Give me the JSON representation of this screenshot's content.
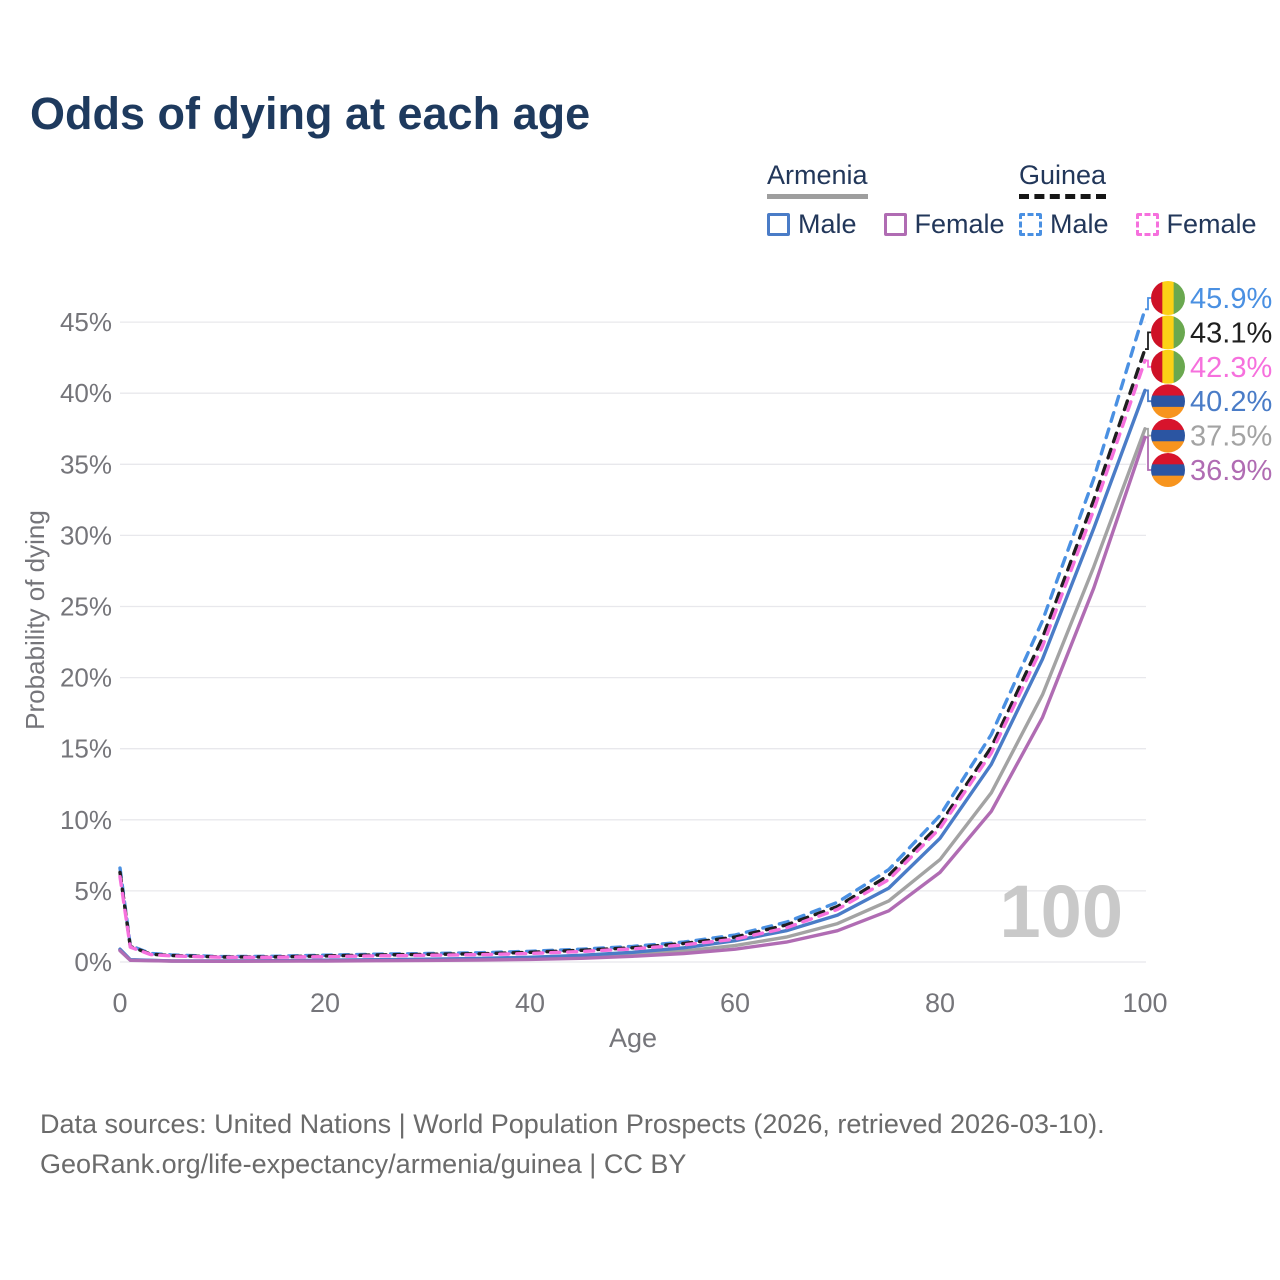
{
  "title": "Odds of dying at each age",
  "legend": {
    "groups": [
      {
        "name": "Armenia",
        "line_style": "solid",
        "underline_color": "#9e9e9e",
        "items": [
          {
            "label": "Male",
            "color": "#4a7cc7"
          },
          {
            "label": "Female",
            "color": "#b06cb3"
          }
        ]
      },
      {
        "name": "Guinea",
        "line_style": "dashed",
        "underline_color": "#161616",
        "items": [
          {
            "label": "Male",
            "color": "#4a90e2"
          },
          {
            "label": "Female",
            "color": "#f670dd"
          }
        ]
      }
    ]
  },
  "watermark_age": "100",
  "footer": {
    "line1": "Data sources: United Nations | World Population Prospects (2026, retrieved 2026-03-10).",
    "line2": "GeoRank.org/life-expectancy/armenia/guinea | CC BY"
  },
  "chart_data": {
    "type": "line",
    "title": "Odds of dying at each age",
    "xlabel": "Age",
    "ylabel": "Probability of dying",
    "xlim": [
      0,
      100
    ],
    "ylim": [
      0,
      47
    ],
    "x_ticks": [
      0,
      20,
      40,
      60,
      80,
      100
    ],
    "y_ticks": [
      0,
      5,
      10,
      15,
      20,
      25,
      30,
      35,
      40,
      45
    ],
    "y_tick_suffix": "%",
    "grid": "horizontal",
    "legend_position": "top-right",
    "axis_text_color": "#75757a",
    "grid_color": "#e8e8ec",
    "series": [
      {
        "name": "Armenia (both sexes)",
        "country": "Armenia",
        "sex": "both",
        "flag": "armenia",
        "color": "#a3a3a3",
        "dashed": false,
        "end_label": "37.5%",
        "points": [
          [
            0,
            0.85
          ],
          [
            1,
            0.14
          ],
          [
            5,
            0.07
          ],
          [
            10,
            0.06
          ],
          [
            15,
            0.07
          ],
          [
            20,
            0.1
          ],
          [
            25,
            0.12
          ],
          [
            30,
            0.15
          ],
          [
            35,
            0.19
          ],
          [
            40,
            0.25
          ],
          [
            45,
            0.36
          ],
          [
            50,
            0.53
          ],
          [
            55,
            0.78
          ],
          [
            60,
            1.15
          ],
          [
            65,
            1.75
          ],
          [
            70,
            2.7
          ],
          [
            75,
            4.3
          ],
          [
            80,
            7.2
          ],
          [
            85,
            11.9
          ],
          [
            90,
            18.8
          ],
          [
            95,
            27.8
          ],
          [
            100,
            37.5
          ]
        ]
      },
      {
        "name": "Armenia Male",
        "country": "Armenia",
        "sex": "male",
        "flag": "armenia",
        "color": "#4a7cc7",
        "dashed": false,
        "end_label": "40.2%",
        "points": [
          [
            0,
            0.9
          ],
          [
            1,
            0.16
          ],
          [
            5,
            0.08
          ],
          [
            10,
            0.07
          ],
          [
            15,
            0.09
          ],
          [
            20,
            0.13
          ],
          [
            25,
            0.16
          ],
          [
            30,
            0.2
          ],
          [
            35,
            0.25
          ],
          [
            40,
            0.33
          ],
          [
            45,
            0.47
          ],
          [
            50,
            0.68
          ],
          [
            55,
            1.0
          ],
          [
            60,
            1.5
          ],
          [
            65,
            2.2
          ],
          [
            70,
            3.3
          ],
          [
            75,
            5.2
          ],
          [
            80,
            8.7
          ],
          [
            85,
            13.9
          ],
          [
            90,
            21.3
          ],
          [
            95,
            30.5
          ],
          [
            100,
            40.2
          ]
        ]
      },
      {
        "name": "Guinea Male",
        "country": "Guinea",
        "sex": "male",
        "flag": "guinea",
        "color": "#4a90e2",
        "dashed": true,
        "end_label": "45.9%",
        "points": [
          [
            0,
            6.6
          ],
          [
            1,
            1.15
          ],
          [
            3,
            0.6
          ],
          [
            5,
            0.5
          ],
          [
            10,
            0.38
          ],
          [
            15,
            0.4
          ],
          [
            20,
            0.48
          ],
          [
            25,
            0.55
          ],
          [
            30,
            0.6
          ],
          [
            35,
            0.65
          ],
          [
            40,
            0.75
          ],
          [
            45,
            0.9
          ],
          [
            50,
            1.1
          ],
          [
            55,
            1.4
          ],
          [
            60,
            1.9
          ],
          [
            65,
            2.8
          ],
          [
            70,
            4.2
          ],
          [
            75,
            6.5
          ],
          [
            80,
            10.3
          ],
          [
            85,
            16.0
          ],
          [
            90,
            24.0
          ],
          [
            95,
            34.0
          ],
          [
            100,
            45.9
          ]
        ]
      },
      {
        "name": "Guinea (both sexes)",
        "country": "Guinea",
        "sex": "both",
        "flag": "guinea",
        "color": "#1f1f1f",
        "dashed": true,
        "end_label": "43.1%",
        "points": [
          [
            0,
            6.3
          ],
          [
            1,
            1.1
          ],
          [
            3,
            0.55
          ],
          [
            5,
            0.46
          ],
          [
            10,
            0.35
          ],
          [
            15,
            0.36
          ],
          [
            20,
            0.43
          ],
          [
            25,
            0.49
          ],
          [
            30,
            0.54
          ],
          [
            35,
            0.58
          ],
          [
            40,
            0.68
          ],
          [
            45,
            0.82
          ],
          [
            50,
            1.0
          ],
          [
            55,
            1.3
          ],
          [
            60,
            1.75
          ],
          [
            65,
            2.6
          ],
          [
            70,
            3.9
          ],
          [
            75,
            6.1
          ],
          [
            80,
            9.7
          ],
          [
            85,
            15.1
          ],
          [
            90,
            22.8
          ],
          [
            95,
            32.5
          ],
          [
            100,
            43.1
          ]
        ]
      },
      {
        "name": "Guinea Female",
        "country": "Guinea",
        "sex": "female",
        "flag": "guinea",
        "color": "#f670dd",
        "dashed": true,
        "end_label": "42.3%",
        "points": [
          [
            0,
            6.0
          ],
          [
            1,
            1.05
          ],
          [
            3,
            0.52
          ],
          [
            5,
            0.43
          ],
          [
            10,
            0.33
          ],
          [
            15,
            0.33
          ],
          [
            20,
            0.38
          ],
          [
            25,
            0.43
          ],
          [
            30,
            0.47
          ],
          [
            35,
            0.51
          ],
          [
            40,
            0.6
          ],
          [
            45,
            0.74
          ],
          [
            50,
            0.92
          ],
          [
            55,
            1.2
          ],
          [
            60,
            1.6
          ],
          [
            65,
            2.4
          ],
          [
            70,
            3.7
          ],
          [
            75,
            5.8
          ],
          [
            80,
            9.4
          ],
          [
            85,
            14.7
          ],
          [
            90,
            22.2
          ],
          [
            95,
            31.8
          ],
          [
            100,
            42.3
          ]
        ]
      },
      {
        "name": "Armenia Female",
        "country": "Armenia",
        "sex": "female",
        "flag": "armenia",
        "color": "#b06cb3",
        "dashed": false,
        "end_label": "36.9%",
        "points": [
          [
            0,
            0.8
          ],
          [
            1,
            0.12
          ],
          [
            5,
            0.06
          ],
          [
            10,
            0.05
          ],
          [
            15,
            0.06
          ],
          [
            20,
            0.07
          ],
          [
            25,
            0.09
          ],
          [
            30,
            0.11
          ],
          [
            35,
            0.14
          ],
          [
            40,
            0.18
          ],
          [
            45,
            0.26
          ],
          [
            50,
            0.4
          ],
          [
            55,
            0.6
          ],
          [
            60,
            0.9
          ],
          [
            65,
            1.4
          ],
          [
            70,
            2.2
          ],
          [
            75,
            3.6
          ],
          [
            80,
            6.3
          ],
          [
            85,
            10.6
          ],
          [
            90,
            17.2
          ],
          [
            95,
            26.3
          ],
          [
            100,
            36.9
          ]
        ]
      }
    ],
    "flag_colors": {
      "guinea": {
        "orientation": "vertical",
        "stripes": [
          "#ce1126",
          "#fcd116",
          "#6aa84f"
        ]
      },
      "armenia": {
        "orientation": "horizontal",
        "stripes": [
          "#d7142c",
          "#2b55a2",
          "#f7941e"
        ]
      }
    }
  }
}
